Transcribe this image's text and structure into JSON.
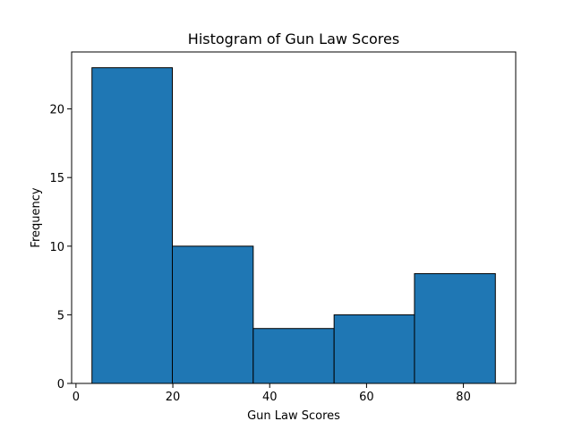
{
  "chart_data": {
    "type": "bar",
    "title": "Histogram of Gun Law Scores",
    "xlabel": "Gun Law Scores",
    "ylabel": "Frequency",
    "bins": [
      {
        "start": 3.3,
        "end": 19.9,
        "count": 23
      },
      {
        "start": 19.9,
        "end": 36.6,
        "count": 10
      },
      {
        "start": 36.6,
        "end": 53.3,
        "count": 4
      },
      {
        "start": 53.3,
        "end": 69.9,
        "count": 5
      },
      {
        "start": 69.9,
        "end": 86.6,
        "count": 8
      }
    ],
    "xlim": [
      -0.9,
      90.8
    ],
    "ylim": [
      0,
      24.15
    ],
    "xticks": [
      0,
      20,
      40,
      60,
      80
    ],
    "yticks": [
      0,
      5,
      10,
      15,
      20
    ],
    "bar_color": "#1f77b4",
    "edge_color": "#000000",
    "grid": false,
    "legend": "none"
  }
}
